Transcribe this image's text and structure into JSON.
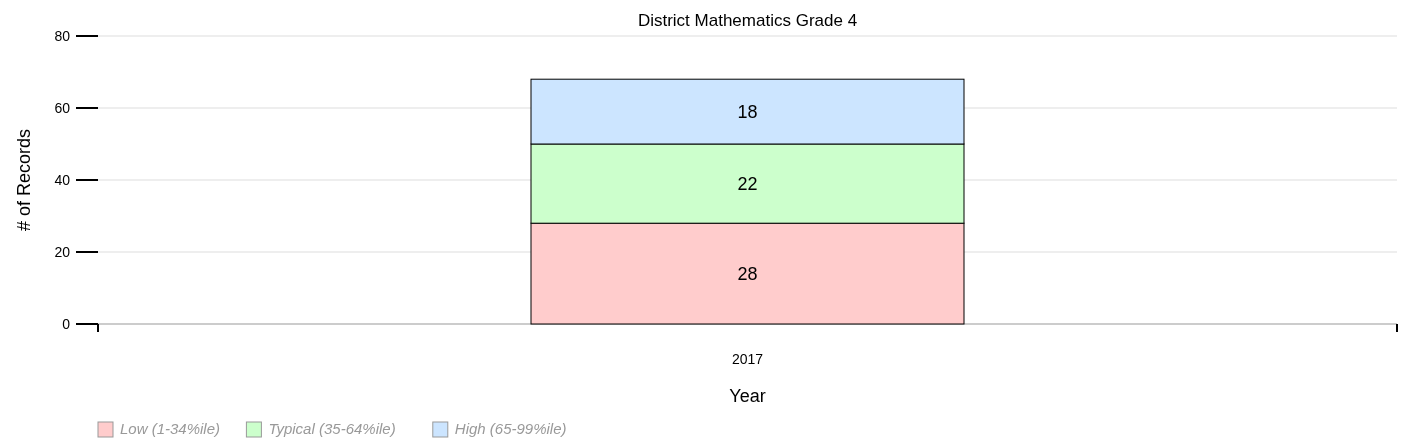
{
  "chart_data": {
    "type": "bar",
    "title": "District Mathematics Grade 4",
    "xlabel": "Year",
    "ylabel": "# of Records",
    "categories": [
      "2017"
    ],
    "stacked": true,
    "series": [
      {
        "name": "Low (1-34%ile)",
        "color": "#ffcccc",
        "values": [
          28
        ]
      },
      {
        "name": "Typical (35-64%ile)",
        "color": "#ccffcc",
        "values": [
          22
        ]
      },
      {
        "name": "High (65-99%ile)",
        "color": "#cce5ff",
        "values": [
          18
        ]
      }
    ],
    "ylim": [
      0,
      80
    ],
    "yticks": [
      0,
      20,
      40,
      60,
      80
    ],
    "grid": "y",
    "data_labels": true,
    "legend": "bottom left"
  }
}
